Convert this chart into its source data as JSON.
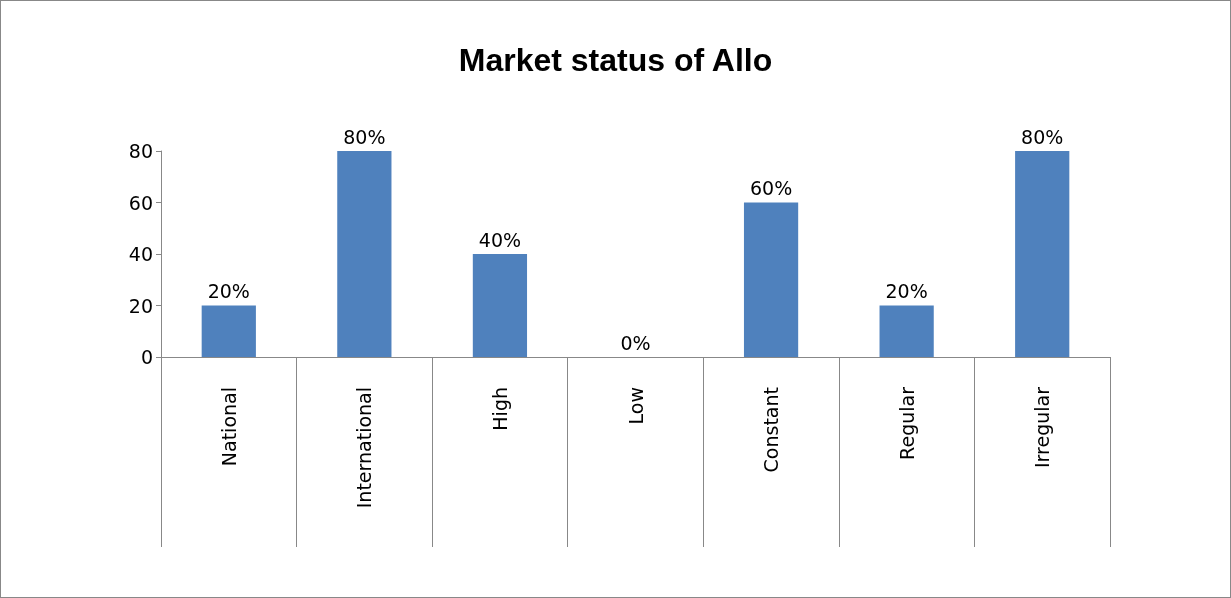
{
  "chart_data": {
    "type": "bar",
    "title": "Market status of Allo",
    "categories": [
      "National",
      "International",
      "High",
      "Low",
      "Constant",
      "Regular",
      "Irregular"
    ],
    "values": [
      20,
      80,
      40,
      0,
      60,
      20,
      80
    ],
    "value_labels": [
      "20%",
      "80%",
      "40%",
      "0%",
      "60%",
      "20%",
      "80%"
    ],
    "color": "#4f81bd",
    "ylim": [
      0,
      80
    ],
    "yticks": [
      0,
      20,
      40,
      60,
      80
    ],
    "grid": false
  }
}
